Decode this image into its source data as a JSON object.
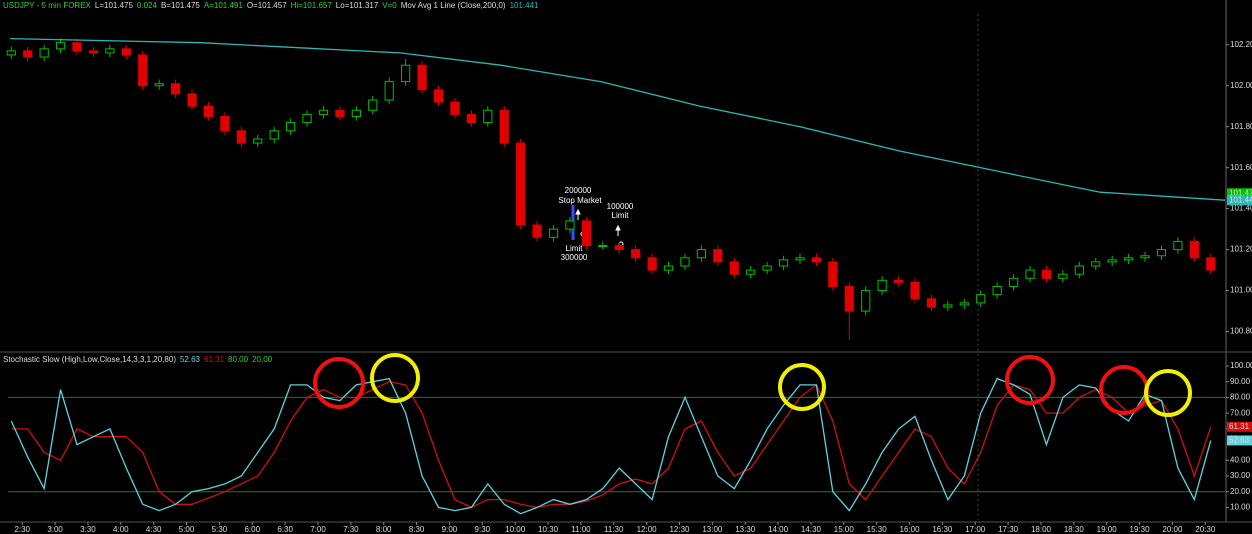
{
  "chart_data": [
    {
      "type": "candlestick",
      "title": "USDJPY - 5 min FOREX",
      "quote": [
        "L=101.475",
        "0.024",
        "B=101.475",
        "A=101.491",
        "O=101.457",
        "Hi=101.657",
        "Lo=101.317",
        "V=0"
      ],
      "last": 101.475,
      "x": [
        140,
        155,
        170,
        185,
        200,
        215,
        230,
        245,
        260,
        275,
        290,
        305,
        320,
        335,
        350,
        365,
        380,
        395,
        410,
        425,
        440,
        455,
        470,
        485,
        500,
        515,
        530,
        545,
        560,
        575,
        590,
        605,
        620,
        635,
        650,
        665,
        680,
        695,
        710,
        725,
        740,
        755,
        770,
        785,
        800,
        815,
        830,
        845,
        860,
        875,
        890,
        905,
        920,
        935,
        950,
        965,
        980,
        995,
        1010,
        1025,
        1040,
        1055,
        1070,
        1085,
        1100,
        1115,
        1130,
        1145,
        1160,
        1175,
        1190,
        1205,
        1220,
        1235
      ],
      "open": [
        102.15,
        102.17,
        102.14,
        102.18,
        102.21,
        102.17,
        102.16,
        102.18,
        102.15,
        102.0,
        102.01,
        101.96,
        101.9,
        101.85,
        101.78,
        101.72,
        101.74,
        101.78,
        101.82,
        101.86,
        101.88,
        101.85,
        101.88,
        101.93,
        102.02,
        102.1,
        101.98,
        101.92,
        101.86,
        101.82,
        101.88,
        101.72,
        101.32,
        101.26,
        101.3,
        101.34,
        101.22,
        101.22,
        101.2,
        101.16,
        101.1,
        101.12,
        101.16,
        101.2,
        101.14,
        101.08,
        101.1,
        101.12,
        101.15,
        101.16,
        101.14,
        101.02,
        100.9,
        101.0,
        101.05,
        101.04,
        100.96,
        100.92,
        100.93,
        100.94,
        100.98,
        101.02,
        101.06,
        101.1,
        101.06,
        101.08,
        101.12,
        101.14,
        101.15,
        101.16,
        101.17,
        101.2,
        101.24,
        101.16
      ],
      "high": [
        102.19,
        102.19,
        102.2,
        102.23,
        102.23,
        102.19,
        102.2,
        102.2,
        102.17,
        102.03,
        102.03,
        101.98,
        101.92,
        101.87,
        101.8,
        101.76,
        101.8,
        101.84,
        101.88,
        101.9,
        101.9,
        101.9,
        101.95,
        102.04,
        102.13,
        102.12,
        102.0,
        101.94,
        101.88,
        101.9,
        101.9,
        101.74,
        101.34,
        101.32,
        101.36,
        101.36,
        101.24,
        101.24,
        101.22,
        101.18,
        101.14,
        101.18,
        101.22,
        101.22,
        101.16,
        101.12,
        101.14,
        101.17,
        101.18,
        101.18,
        101.16,
        101.04,
        101.02,
        101.07,
        101.07,
        101.06,
        100.98,
        100.95,
        100.96,
        101.0,
        101.04,
        101.08,
        101.12,
        101.12,
        101.1,
        101.14,
        101.16,
        101.17,
        101.18,
        101.19,
        101.22,
        101.26,
        101.26,
        101.18
      ],
      "low": [
        102.13,
        102.12,
        102.12,
        102.16,
        102.15,
        102.14,
        102.14,
        102.13,
        101.98,
        101.98,
        101.94,
        101.88,
        101.83,
        101.76,
        101.7,
        101.7,
        101.72,
        101.76,
        101.8,
        101.84,
        101.83,
        101.83,
        101.86,
        101.91,
        102.0,
        101.96,
        101.9,
        101.84,
        101.8,
        101.8,
        101.7,
        101.3,
        101.24,
        101.24,
        101.28,
        101.2,
        101.2,
        101.18,
        101.14,
        101.08,
        101.08,
        101.1,
        101.14,
        101.12,
        101.06,
        101.06,
        101.08,
        101.1,
        101.13,
        101.12,
        101.0,
        100.76,
        100.88,
        100.98,
        101.02,
        100.94,
        100.9,
        100.9,
        100.91,
        100.92,
        100.96,
        101.0,
        101.04,
        101.04,
        101.04,
        101.06,
        101.1,
        101.12,
        101.13,
        101.14,
        101.15,
        101.18,
        101.14,
        101.08
      ],
      "close": [
        102.17,
        102.14,
        102.18,
        102.21,
        102.17,
        102.16,
        102.18,
        102.15,
        102.0,
        102.01,
        101.96,
        101.9,
        101.85,
        101.78,
        101.72,
        101.74,
        101.78,
        101.82,
        101.86,
        101.88,
        101.85,
        101.88,
        101.93,
        102.02,
        102.1,
        101.98,
        101.92,
        101.86,
        101.82,
        101.88,
        101.72,
        101.32,
        101.26,
        101.3,
        101.34,
        101.22,
        101.22,
        101.2,
        101.16,
        101.1,
        101.12,
        101.16,
        101.2,
        101.14,
        101.08,
        101.1,
        101.12,
        101.15,
        101.16,
        101.14,
        101.02,
        100.9,
        101.0,
        101.05,
        101.04,
        100.96,
        100.92,
        100.93,
        100.94,
        100.98,
        101.02,
        101.06,
        101.1,
        101.06,
        101.08,
        101.12,
        101.14,
        101.15,
        101.16,
        101.17,
        101.2,
        101.24,
        101.16,
        101.1
      ],
      "up_color": "#00c000",
      "down_color": "#e00000",
      "series": [
        {
          "name": "Mov Avg 1 Line (Close,200,0)",
          "color": "#2ab7b7",
          "x": [
            139,
            313,
            495,
            587,
            678,
            769,
            860,
            952,
            1043,
            1134,
            1248
          ],
          "values": [
            102.23,
            102.21,
            102.16,
            102.1,
            102.02,
            101.9,
            101.8,
            101.68,
            101.58,
            101.48,
            101.441
          ]
        }
      ],
      "annotations": [
        {
          "text": "200000"
        },
        {
          "text": "Stop Market"
        },
        {
          "text": "100000"
        },
        {
          "text": "Limit"
        },
        {
          "text": "Limit"
        },
        {
          "text": "300000"
        }
      ],
      "xlim": [
        137,
        1248
      ],
      "ylim": [
        100.71,
        102.35
      ],
      "yticks": [
        {
          "value": 102.2,
          "label": "102.20"
        },
        {
          "value": 102.0,
          "label": "102.00"
        },
        {
          "value": 101.8,
          "label": "101.80"
        },
        {
          "value": 101.6,
          "label": "101.60"
        },
        {
          "value": 101.4,
          "label": "101.40"
        },
        {
          "value": 101.2,
          "label": "101.20"
        },
        {
          "value": 101.0,
          "label": "101.00"
        },
        {
          "value": 100.8,
          "label": "100.80"
        }
      ]
    },
    {
      "type": "line",
      "title": "Stochastic Slow (High,Low,Close,14,3,3,1,20,80)",
      "x": [
        140,
        155,
        170,
        185,
        200,
        215,
        230,
        245,
        260,
        275,
        290,
        305,
        320,
        335,
        350,
        365,
        380,
        395,
        410,
        425,
        440,
        455,
        470,
        485,
        500,
        515,
        530,
        545,
        560,
        575,
        590,
        605,
        620,
        635,
        650,
        665,
        680,
        695,
        710,
        725,
        740,
        755,
        770,
        785,
        800,
        815,
        830,
        845,
        860,
        875,
        890,
        905,
        920,
        935,
        950,
        965,
        980,
        995,
        1010,
        1025,
        1040,
        1055,
        1070,
        1085,
        1100,
        1115,
        1130,
        1145,
        1160,
        1175,
        1190,
        1205,
        1220,
        1235
      ],
      "series": [
        {
          "color": "#5fd3e0",
          "values": [
            65,
            42,
            22,
            85,
            50,
            55,
            60,
            35,
            12,
            8,
            12,
            20,
            22,
            25,
            30,
            45,
            60,
            88,
            88,
            80,
            78,
            88,
            90,
            92,
            70,
            30,
            10,
            8,
            10,
            25,
            12,
            6,
            10,
            15,
            12,
            15,
            22,
            35,
            25,
            15,
            55,
            80,
            55,
            30,
            22,
            40,
            60,
            75,
            88,
            88,
            20,
            8,
            25,
            45,
            60,
            68,
            40,
            15,
            30,
            70,
            92,
            88,
            82,
            50,
            80,
            88,
            86,
            72,
            65,
            82,
            78,
            35,
            15,
            52.63
          ]
        },
        {
          "color": "#d01010",
          "values": [
            60,
            60,
            45,
            40,
            60,
            55,
            55,
            55,
            45,
            20,
            12,
            12,
            16,
            20,
            25,
            30,
            45,
            65,
            80,
            85,
            80,
            80,
            85,
            90,
            88,
            70,
            40,
            15,
            10,
            15,
            15,
            12,
            10,
            12,
            12,
            14,
            18,
            25,
            28,
            25,
            35,
            60,
            65,
            45,
            30,
            35,
            50,
            65,
            80,
            88,
            65,
            25,
            15,
            30,
            45,
            60,
            55,
            35,
            25,
            45,
            75,
            88,
            85,
            70,
            70,
            80,
            85,
            80,
            70,
            75,
            78,
            60,
            30,
            61.31
          ]
        }
      ],
      "levels": [
        {
          "value": 80,
          "label": "80.00"
        },
        {
          "value": 20,
          "label": "20.00"
        }
      ],
      "level_color": "#1f7a1f",
      "xlim": [
        137,
        1248
      ],
      "ylim": [
        2,
        107
      ],
      "yticks": [
        {
          "value": 100,
          "label": "100.00"
        },
        {
          "value": 90,
          "label": "90.00"
        },
        {
          "value": 80,
          "label": "80.00"
        },
        {
          "value": 70,
          "label": "70.00"
        },
        {
          "value": 60,
          "label": "60.00"
        },
        {
          "value": 40,
          "label": "40.00"
        },
        {
          "value": 30,
          "label": "30.00"
        },
        {
          "value": 20,
          "label": "20.00"
        },
        {
          "value": 10,
          "label": "10.00"
        }
      ],
      "xticks": [
        {
          "value": 150,
          "label": "2:30"
        },
        {
          "value": 180,
          "label": "3:00"
        },
        {
          "value": 210,
          "label": "3:30"
        },
        {
          "value": 240,
          "label": "4:00"
        },
        {
          "value": 270,
          "label": "4:30"
        },
        {
          "value": 300,
          "label": "5:00"
        },
        {
          "value": 330,
          "label": "5:30"
        },
        {
          "value": 360,
          "label": "6:00"
        },
        {
          "value": 390,
          "label": "6:30"
        },
        {
          "value": 420,
          "label": "7:00"
        },
        {
          "value": 450,
          "label": "7:30"
        },
        {
          "value": 480,
          "label": "8:00"
        },
        {
          "value": 510,
          "label": "8:30"
        },
        {
          "value": 540,
          "label": "9:00"
        },
        {
          "value": 570,
          "label": "9:30"
        },
        {
          "value": 600,
          "label": "10:00"
        },
        {
          "value": 630,
          "label": "10:30"
        },
        {
          "value": 660,
          "label": "11:00"
        },
        {
          "value": 690,
          "label": "11:30"
        },
        {
          "value": 720,
          "label": "12:00"
        },
        {
          "value": 750,
          "label": "12:30"
        },
        {
          "value": 780,
          "label": "13:00"
        },
        {
          "value": 810,
          "label": "13:30"
        },
        {
          "value": 840,
          "label": "14:00"
        },
        {
          "value": 870,
          "label": "14:30"
        },
        {
          "value": 900,
          "label": "15:00"
        },
        {
          "value": 930,
          "label": "15:30"
        },
        {
          "value": 960,
          "label": "16:00"
        },
        {
          "value": 990,
          "label": "16:30"
        },
        {
          "value": 1020,
          "label": "17:00"
        },
        {
          "value": 1050,
          "label": "17:30"
        },
        {
          "value": 1080,
          "label": "18:00"
        },
        {
          "value": 1110,
          "label": "18:30"
        },
        {
          "value": 1140,
          "label": "19:00"
        },
        {
          "value": 1170,
          "label": "19:30"
        },
        {
          "value": 1200,
          "label": "20:00"
        },
        {
          "value": 1230,
          "label": "20:30"
        }
      ]
    }
  ]
}
